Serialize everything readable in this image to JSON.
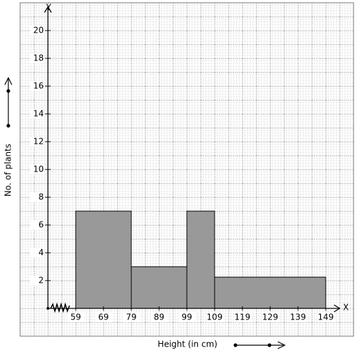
{
  "chart_data": {
    "type": "histogram",
    "x_label": "Height (in cm)",
    "y_label": "No. of plants",
    "x_axis_name": "X",
    "y_axis_name": "Y",
    "bins": [
      59,
      79,
      99,
      109,
      149
    ],
    "values": [
      7,
      3,
      7,
      2.25
    ],
    "color": "#999999",
    "xlim": [
      49,
      154
    ],
    "xticks": [
      59,
      69,
      79,
      89,
      99,
      109,
      119,
      129,
      139,
      149
    ],
    "ylim": [
      0,
      21.5
    ],
    "yticks": [
      2,
      4,
      6,
      8,
      10,
      12,
      14,
      16,
      18,
      20
    ],
    "grid": true
  }
}
